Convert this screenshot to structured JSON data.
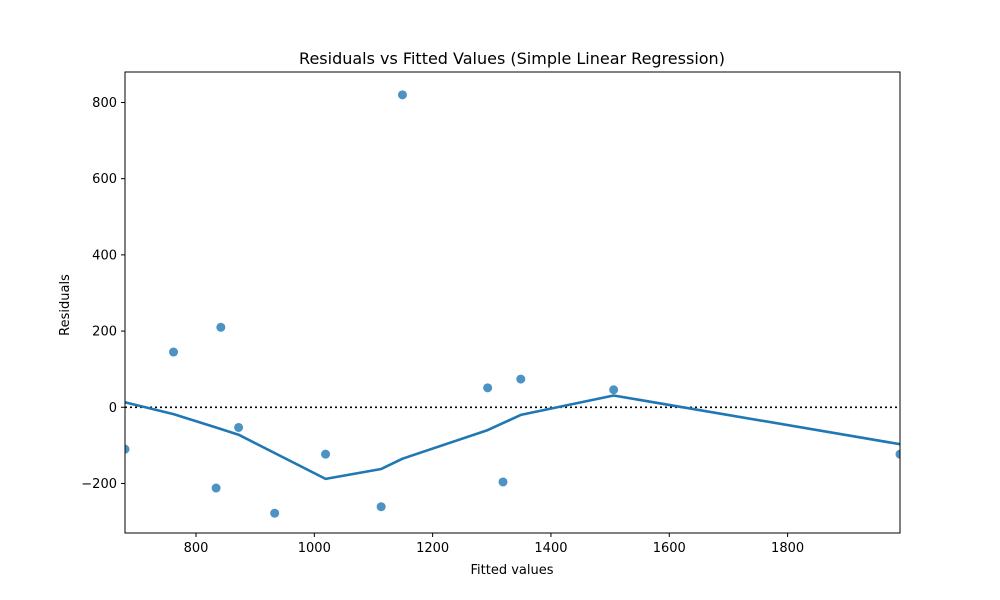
{
  "chart_data": {
    "type": "scatter",
    "title": "Residuals vs Fitted Values (Simple Linear Regression)",
    "xlabel": "Fitted values",
    "ylabel": "Residuals",
    "xlim": [
      680,
      1990
    ],
    "ylim": [
      -330,
      880
    ],
    "xticks": [
      800,
      1000,
      1200,
      1400,
      1600,
      1800
    ],
    "yticks": [
      -200,
      0,
      200,
      400,
      600,
      800
    ],
    "grid": false,
    "colors": {
      "points": "#1f77b4",
      "line": "#1f77b4",
      "reference": "#000000"
    },
    "points": [
      {
        "x": 680,
        "y": -110
      },
      {
        "x": 762,
        "y": 145
      },
      {
        "x": 834,
        "y": -212
      },
      {
        "x": 842,
        "y": 210
      },
      {
        "x": 872,
        "y": -53
      },
      {
        "x": 933,
        "y": -278
      },
      {
        "x": 1019,
        "y": -123
      },
      {
        "x": 1113,
        "y": -261
      },
      {
        "x": 1149,
        "y": 820
      },
      {
        "x": 1293,
        "y": 51
      },
      {
        "x": 1319,
        "y": -196
      },
      {
        "x": 1349,
        "y": 74
      },
      {
        "x": 1506,
        "y": 46
      },
      {
        "x": 1990,
        "y": -123
      }
    ],
    "smooth_line": [
      {
        "x": 680,
        "y": 13
      },
      {
        "x": 762,
        "y": -18
      },
      {
        "x": 834,
        "y": -53
      },
      {
        "x": 872,
        "y": -72
      },
      {
        "x": 1019,
        "y": -188
      },
      {
        "x": 1113,
        "y": -162
      },
      {
        "x": 1149,
        "y": -135
      },
      {
        "x": 1293,
        "y": -60
      },
      {
        "x": 1349,
        "y": -20
      },
      {
        "x": 1506,
        "y": 31
      },
      {
        "x": 1990,
        "y": -97
      }
    ],
    "reference_line_y": 0
  }
}
